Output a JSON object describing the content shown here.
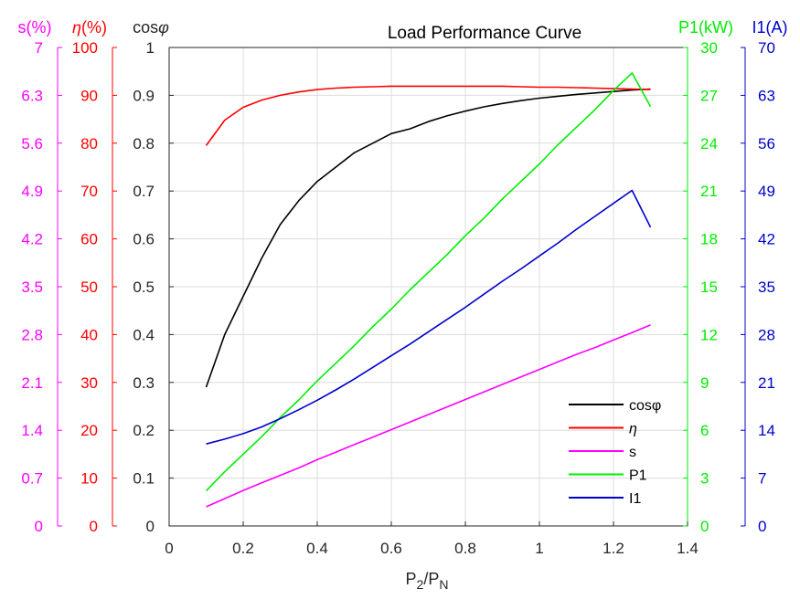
{
  "chart_data": {
    "type": "line",
    "title": "Load Performance Curve",
    "xlabel": {
      "main": "P",
      "sub1": "2",
      "mid": "/P",
      "sub2": "N"
    },
    "x_ticks": [
      "0",
      "0.2",
      "0.4",
      "0.6",
      "0.8",
      "1",
      "1.2",
      "1.4"
    ],
    "xlim": [
      0,
      1.4
    ],
    "grid": true,
    "legend_position": "bottom-right",
    "axes": [
      {
        "id": "s",
        "label": "s(%)",
        "side": "left",
        "color": "#ff00ff",
        "min": 0,
        "max": 7,
        "ticks": [
          "0",
          "0.7",
          "1.4",
          "2.1",
          "2.8",
          "3.5",
          "4.2",
          "4.9",
          "5.6",
          "6.3",
          "7"
        ]
      },
      {
        "id": "eta",
        "label_prefix": "η",
        "label_suffix": "(%)",
        "side": "left",
        "color": "#ff0000",
        "min": 0,
        "max": 100,
        "ticks": [
          "0",
          "10",
          "20",
          "30",
          "40",
          "50",
          "60",
          "70",
          "80",
          "90",
          "100"
        ]
      },
      {
        "id": "cos",
        "label_prefix": "cos",
        "label_suffix": "φ",
        "side": "left",
        "color": "#000000",
        "min": 0,
        "max": 1,
        "ticks": [
          "0",
          "0.1",
          "0.2",
          "0.3",
          "0.4",
          "0.5",
          "0.6",
          "0.7",
          "0.8",
          "0.9",
          "1"
        ]
      },
      {
        "id": "p1",
        "label": "P1(kW)",
        "side": "right",
        "color": "#00ee00",
        "min": 0,
        "max": 30,
        "ticks": [
          "0",
          "3",
          "6",
          "9",
          "12",
          "15",
          "18",
          "21",
          "24",
          "27",
          "30"
        ]
      },
      {
        "id": "i1",
        "label": "I1(A)",
        "side": "right",
        "color": "#0000cc",
        "min": 0,
        "max": 70,
        "ticks": [
          "0",
          "7",
          "14",
          "21",
          "28",
          "35",
          "42",
          "49",
          "56",
          "63",
          "70"
        ]
      }
    ],
    "x": [
      0.1,
      0.15,
      0.2,
      0.25,
      0.3,
      0.35,
      0.4,
      0.45,
      0.5,
      0.55,
      0.6,
      0.65,
      0.7,
      0.75,
      0.8,
      0.85,
      0.9,
      0.95,
      1.0,
      1.05,
      1.1,
      1.15,
      1.2,
      1.25,
      1.3
    ],
    "series": [
      {
        "name": "cosφ",
        "axis": "cos",
        "color": "#000000",
        "values": [
          0.29,
          0.4,
          0.48,
          0.56,
          0.63,
          0.68,
          0.72,
          0.75,
          0.78,
          0.8,
          0.82,
          0.83,
          0.845,
          0.857,
          0.867,
          0.876,
          0.883,
          0.889,
          0.894,
          0.898,
          0.902,
          0.905,
          0.908,
          0.911,
          0.913
        ]
      },
      {
        "name": "η",
        "axis": "eta",
        "color": "#ff0000",
        "values": [
          79.5,
          84.8,
          87.5,
          89.0,
          90.0,
          90.7,
          91.2,
          91.5,
          91.7,
          91.8,
          91.9,
          91.9,
          91.9,
          91.9,
          91.9,
          91.9,
          91.9,
          91.8,
          91.7,
          91.7,
          91.6,
          91.5,
          91.4,
          91.3,
          91.2
        ]
      },
      {
        "name": "s",
        "axis": "s",
        "color": "#ff00ff",
        "values": [
          0.28,
          0.4,
          0.52,
          0.63,
          0.74,
          0.85,
          0.97,
          1.08,
          1.19,
          1.3,
          1.41,
          1.52,
          1.63,
          1.74,
          1.85,
          1.96,
          2.07,
          2.18,
          2.29,
          2.4,
          2.51,
          2.61,
          2.72,
          2.83,
          2.94
        ]
      },
      {
        "name": "P1",
        "axis": "p1",
        "color": "#00ee00",
        "values": [
          2.2,
          3.4,
          4.5,
          5.6,
          6.8,
          7.9,
          9.1,
          10.2,
          11.3,
          12.5,
          13.6,
          14.8,
          15.9,
          17.0,
          18.2,
          19.3,
          20.5,
          21.6,
          22.7,
          23.9,
          25.0,
          26.1,
          27.3,
          28.4,
          26.3
        ]
      },
      {
        "name": "I1",
        "axis": "i1",
        "color": "#0000cc",
        "values": [
          12.0,
          12.7,
          13.5,
          14.5,
          15.7,
          17.0,
          18.4,
          19.9,
          21.5,
          23.2,
          24.9,
          26.6,
          28.4,
          30.2,
          32.0,
          33.9,
          35.8,
          37.6,
          39.5,
          41.4,
          43.4,
          45.3,
          47.2,
          49.1,
          43.7
        ]
      }
    ],
    "legend": [
      {
        "label": "cosφ",
        "color": "#000000",
        "italic": false
      },
      {
        "label": "η",
        "color": "#ff0000",
        "italic": true
      },
      {
        "label": "s",
        "color": "#ff00ff",
        "italic": false
      },
      {
        "label": "P1",
        "color": "#00ee00",
        "italic": false
      },
      {
        "label": "I1",
        "color": "#0000cc",
        "italic": false
      }
    ]
  }
}
